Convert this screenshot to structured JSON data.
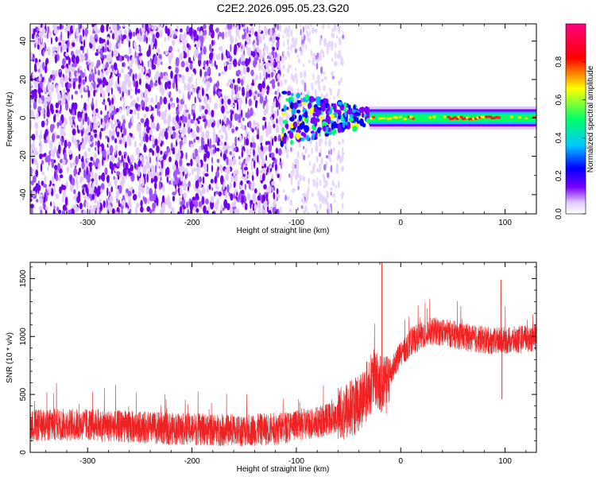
{
  "title": "C2E2.2026.095.05.23.G20",
  "colors": {
    "line": "#ee2222",
    "dots": "#7000f0"
  },
  "chart_data": [
    {
      "type": "heatmap",
      "xlabel": "Height of straight line (km)",
      "ylabel": "Frequency (Hz)",
      "xlim": [
        -355,
        130
      ],
      "ylim": [
        -50,
        49
      ],
      "xticks": [
        -300,
        -200,
        -100,
        0,
        100
      ],
      "xtick_labels": [
        "-300",
        "-200",
        "-100",
        "0",
        "100"
      ],
      "yticks": [
        -40,
        -20,
        0,
        20,
        40
      ],
      "ytick_labels": [
        "-40",
        "-20",
        "0",
        "20",
        "40"
      ],
      "colorbar": {
        "label": "Normalized spectral amplitude",
        "range": [
          0,
          1
        ],
        "ticks": [
          0.0,
          0.2,
          0.4,
          0.6,
          0.8
        ],
        "tick_labels": [
          "0.0",
          "0.2",
          "0.4",
          "0.6",
          "0.8"
        ],
        "colormap": [
          "#ffffff",
          "#e0c8ff",
          "#7a00ff",
          "#0000ff",
          "#00c8ff",
          "#00ff66",
          "#ffff00",
          "#ff0000",
          "#ff0080"
        ]
      },
      "regions": [
        {
          "name": "broadband noise",
          "x": [
            -355,
            -115
          ],
          "y": [
            -50,
            49
          ],
          "amplitude": 0.15
        },
        {
          "name": "fading noise",
          "x": [
            -115,
            -55
          ],
          "y": [
            -50,
            49
          ],
          "amplitude": 0.05
        },
        {
          "name": "tone",
          "x": [
            -115,
            130
          ],
          "y_center": 0,
          "amplitude_peak": 0.95
        }
      ]
    },
    {
      "type": "line",
      "xlabel": "Height of straight line (km)",
      "ylabel": "SNR (10 * v/v)",
      "xlim": [
        -355,
        130
      ],
      "ylim": [
        0,
        1640
      ],
      "xticks": [
        -300,
        -200,
        -100,
        0,
        100
      ],
      "xtick_labels": [
        "-300",
        "-200",
        "-100",
        "0",
        "100"
      ],
      "yticks": [
        0,
        500,
        1000,
        1500
      ],
      "ytick_labels": [
        "0",
        "500",
        "1000",
        "1500"
      ],
      "series": [
        {
          "x": [
            -355,
            -330,
            -300,
            -260,
            -220,
            -180,
            -150,
            -120,
            -100,
            -80,
            -60,
            -40,
            -25,
            -15,
            -5,
            10,
            30,
            50,
            70,
            90,
            110,
            130
          ],
          "y": [
            230,
            240,
            240,
            220,
            205,
            195,
            190,
            205,
            230,
            260,
            310,
            430,
            650,
            560,
            780,
            960,
            1050,
            1020,
            980,
            960,
            970,
            990
          ]
        }
      ],
      "spikes": [
        {
          "x": -18,
          "y": 1640
        },
        {
          "x": 96,
          "y": 1490
        },
        {
          "x": 97,
          "y": 460
        }
      ]
    }
  ]
}
